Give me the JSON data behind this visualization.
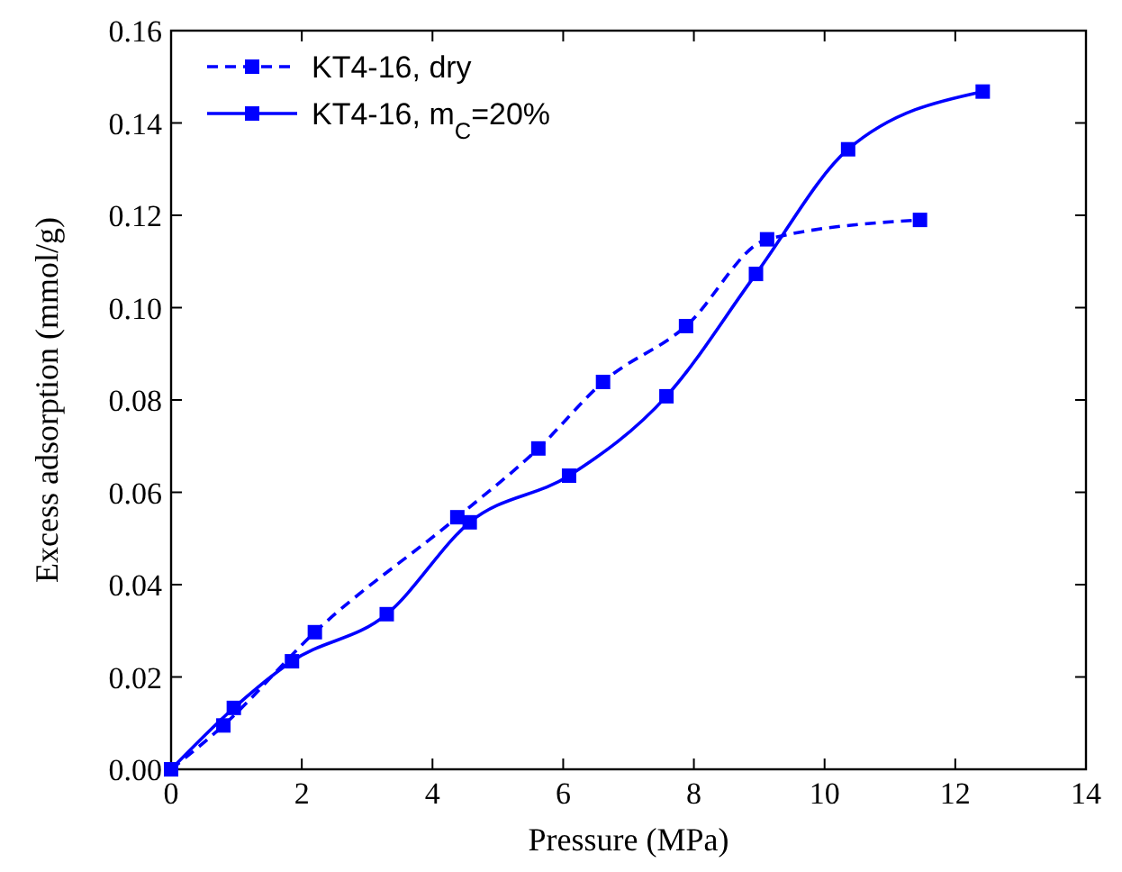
{
  "chart_data": {
    "type": "line",
    "xlabel": "Pressure (MPa)",
    "ylabel": "Excess adsorption (mmol/g)",
    "xlim": [
      0,
      14
    ],
    "xticks": [
      0,
      2,
      4,
      6,
      8,
      10,
      12,
      14
    ],
    "ylim": [
      0,
      0.16
    ],
    "yticks": [
      {
        "value": 0,
        "label": "0.00"
      },
      {
        "value": 0.02,
        "label": "0.02"
      },
      {
        "value": 0.04,
        "label": "0.04"
      },
      {
        "value": 0.06,
        "label": "0.06"
      },
      {
        "value": 0.08,
        "label": "0.08"
      },
      {
        "value": 0.1,
        "label": "0.10"
      },
      {
        "value": 0.12,
        "label": "0.12"
      },
      {
        "value": 0.14,
        "label": "0.14"
      },
      {
        "value": 0.16,
        "label": "0.16"
      }
    ],
    "grid": false,
    "legend": "top left",
    "marker": "square",
    "series": [
      {
        "name": "KT4-16, dry",
        "color": "#0000ff",
        "line_style": "dashed",
        "x": [
          0,
          0.8,
          2.2,
          4.38,
          5.62,
          6.61,
          7.88,
          9.12,
          11.46
        ],
        "values": [
          0,
          0.0095,
          0.0297,
          0.0546,
          0.0695,
          0.0839,
          0.096,
          0.1148,
          0.119
        ]
      },
      {
        "name": "KT4-16, m$_{C}$=20%",
        "color": "#0000ff",
        "line_style": "solid",
        "x": [
          0,
          0.96,
          1.85,
          3.3,
          4.57,
          6.09,
          7.58,
          8.95,
          10.36,
          12.42
        ],
        "values": [
          0,
          0.0133,
          0.0234,
          0.0336,
          0.0535,
          0.0636,
          0.0808,
          0.1073,
          0.1343,
          0.1468
        ]
      }
    ]
  }
}
